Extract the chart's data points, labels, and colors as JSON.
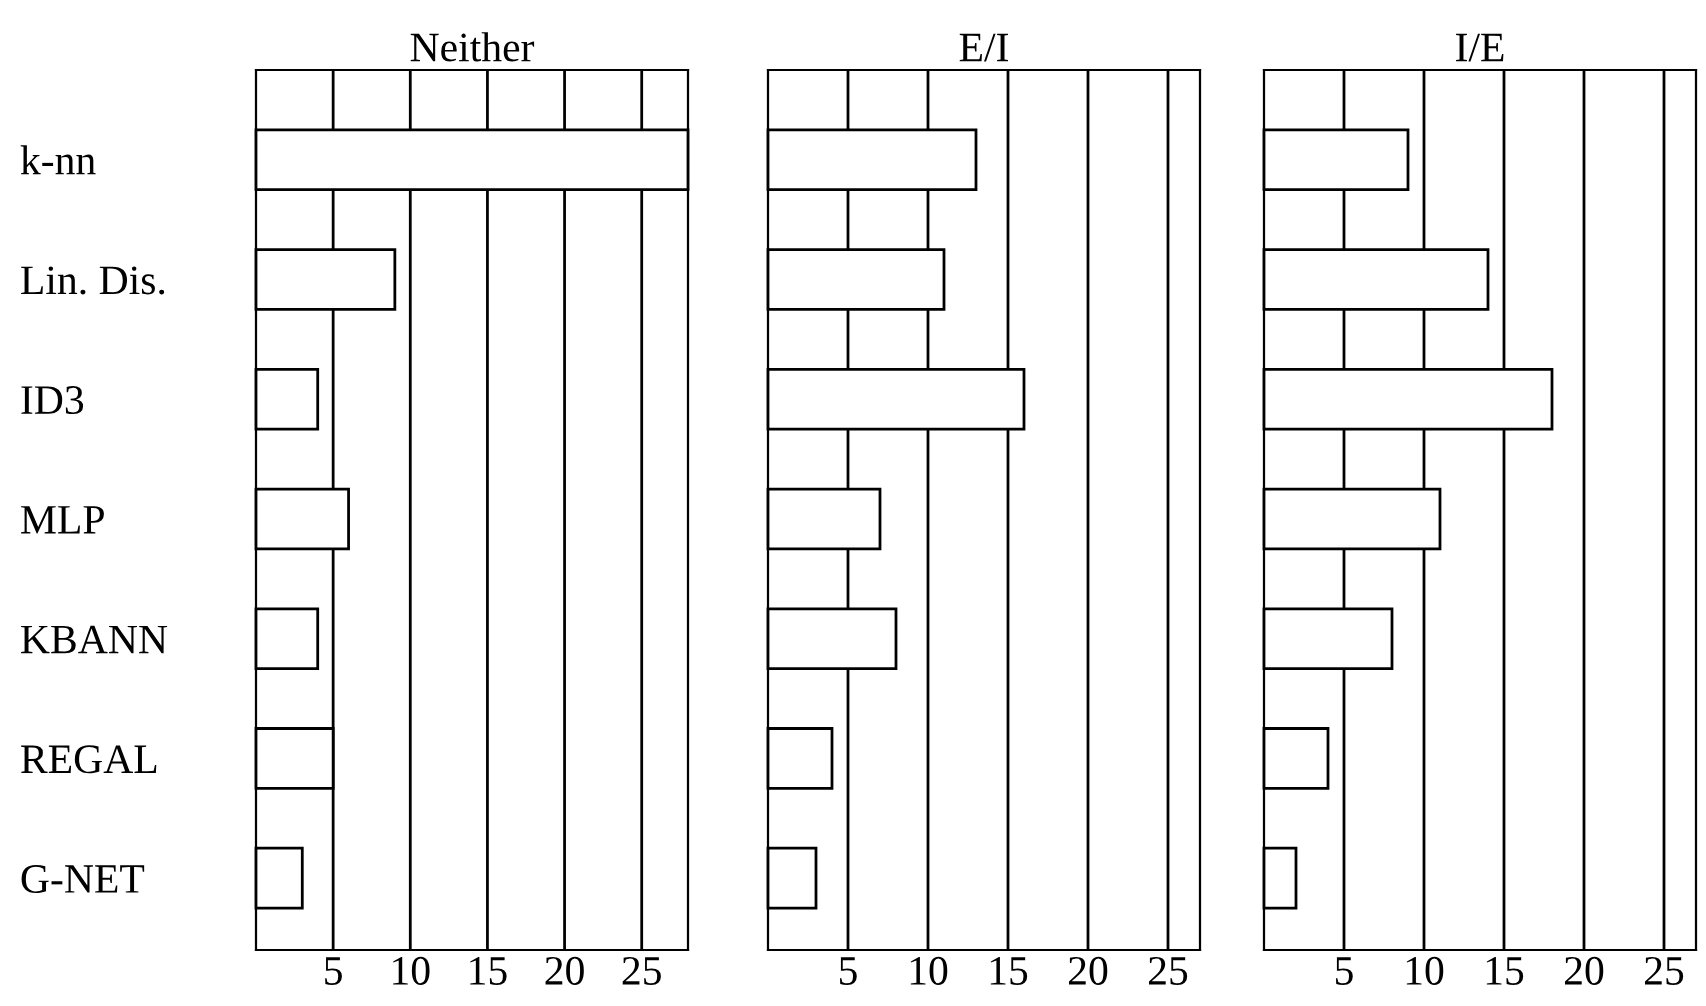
{
  "chart_data": [
    {
      "type": "bar",
      "orientation": "horizontal",
      "title": "Neither",
      "categories": [
        "k-nn",
        "Lin. Dis.",
        "ID3",
        "MLP",
        "KBANN",
        "REGAL",
        "G-NET"
      ],
      "values": [
        28,
        9,
        4,
        6,
        4,
        5,
        3
      ],
      "color": "#ffffff",
      "xlim": [
        0,
        28
      ],
      "xticks": [
        5,
        10,
        15,
        20,
        25
      ],
      "grid": "x"
    },
    {
      "type": "bar",
      "orientation": "horizontal",
      "title": "E/I",
      "values": [
        13,
        11,
        16,
        7,
        8,
        4,
        3
      ],
      "color": "#ffffff",
      "xlim": [
        0,
        27
      ],
      "xticks": [
        5,
        10,
        15,
        20,
        25
      ],
      "grid": "x",
      "tick_labels": "x"
    },
    {
      "type": "bar",
      "orientation": "horizontal",
      "title": "I/E",
      "values": [
        9,
        14,
        18,
        11,
        8,
        4,
        2
      ],
      "color": "#ffffff",
      "xlim": [
        0,
        27
      ],
      "xticks": [
        5,
        10,
        15,
        20,
        25
      ],
      "grid": "x",
      "tick_labels": "x"
    }
  ]
}
